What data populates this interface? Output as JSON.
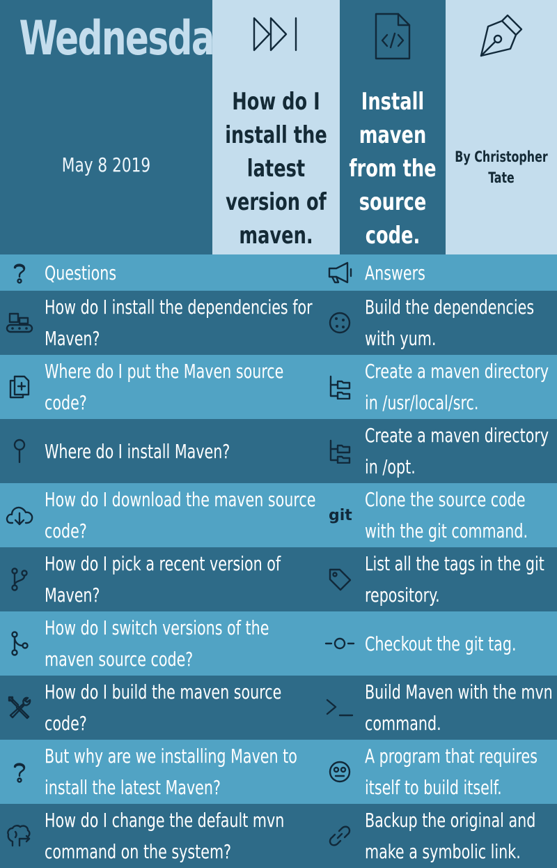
{
  "header": {
    "title": "Wednesday",
    "date": "May 8 2019",
    "step1": [
      "How do I",
      "install the",
      "latest",
      "version of",
      "maven."
    ],
    "step2": [
      "Install",
      "maven",
      "from the",
      "source",
      "code."
    ],
    "author": [
      "By Christopher",
      "Tate"
    ],
    "icons": {
      "step1": "fast-forward-icon",
      "step2": "code-file-icon",
      "author": "pen-nib-icon"
    }
  },
  "table": {
    "headers": {
      "questions": "Questions",
      "answers": "Answers",
      "questions_icon": "question-mark-icon",
      "answers_icon": "megaphone-icon"
    },
    "rows": [
      {
        "question": "How do I install the dependencies for Maven?",
        "answer": "Build the dependencies with yum.",
        "q_icon": "conveyor-icon",
        "a_icon": "cookie-icon"
      },
      {
        "question": "Where do I put the Maven source code?",
        "answer": "Create a maven directory in /usr/local/src.",
        "q_icon": "copy-plus-icon",
        "a_icon": "folder-tree-icon"
      },
      {
        "question": "Where do I install Maven?",
        "answer": "Create a maven directory in /opt.",
        "q_icon": "map-pin-icon",
        "a_icon": "folder-tree-icon"
      },
      {
        "question": "How do I download the maven source code?",
        "answer": "Clone the source code with the git command.",
        "q_icon": "cloud-download-icon",
        "a_icon": "git-icon"
      },
      {
        "question": "How do I pick a recent version of Maven?",
        "answer": "List all the tags in the git repository.",
        "q_icon": "git-branch-icon",
        "a_icon": "tag-icon"
      },
      {
        "question": "How do I switch versions of the maven source code?",
        "answer": "Checkout the git tag.",
        "q_icon": "git-merge-icon",
        "a_icon": "git-commit-icon"
      },
      {
        "question": "How do I build the maven source code?",
        "answer": "Build Maven with the mvn command.",
        "q_icon": "tools-icon",
        "a_icon": "terminal-icon"
      },
      {
        "question": "But why are we installing Maven to install the latest Maven?",
        "answer": "A program that requires itself to build itself.",
        "q_icon": "question-mark-icon",
        "a_icon": "dizzy-face-icon"
      },
      {
        "question": "How do I change the default mvn command on the system?",
        "answer": "Backup the original and make a symbolic link.",
        "q_icon": "brain-arrow-icon",
        "a_icon": "link-icon"
      }
    ]
  }
}
